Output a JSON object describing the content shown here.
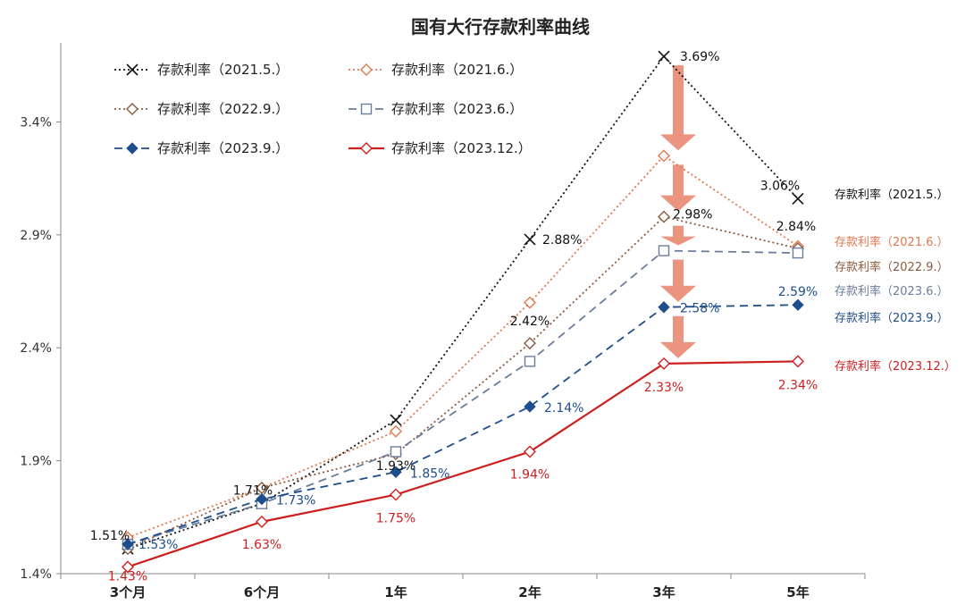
{
  "chart_data": {
    "type": "line",
    "title": "国有大行存款利率曲线",
    "categories": [
      "3个月",
      "6个月",
      "1年",
      "2年",
      "3年",
      "5年"
    ],
    "yticks": [
      "1.4%",
      "1.9%",
      "2.4%",
      "2.9%",
      "3.4%"
    ],
    "ylim": [
      1.4,
      3.75
    ],
    "grid": false,
    "legend_position": "top-left",
    "series": [
      {
        "name": "存款利率（2021.5.）",
        "end_label": "存款利率（2021.5.）",
        "values": [
          1.51,
          1.71,
          2.08,
          2.88,
          3.69,
          3.06
        ],
        "color": "#111111",
        "marker": "x",
        "dash": "2,3"
      },
      {
        "name": "存款利率（2021.6.）",
        "end_label": "存款利率（2021.6.）",
        "values": [
          1.56,
          1.78,
          2.03,
          2.6,
          3.25,
          2.85
        ],
        "color": "#e07850",
        "marker": "diamond-open",
        "dash": "2,3"
      },
      {
        "name": "存款利率（2022.9.）",
        "end_label": "存款利率（2022.9.）",
        "values": [
          1.51,
          1.78,
          1.93,
          2.42,
          2.98,
          2.84
        ],
        "color": "#8b5a3c",
        "marker": "diamond-open",
        "dash": "2,3"
      },
      {
        "name": "存款利率（2023.6.）",
        "end_label": "存款利率（2023.6.）",
        "values": [
          1.53,
          1.71,
          1.94,
          2.34,
          2.83,
          2.82
        ],
        "color": "#6a7d9a",
        "marker": "square-open",
        "dash": "9,6"
      },
      {
        "name": "存款利率（2023.9.）",
        "end_label": "存款利率（2023.9.）",
        "values": [
          1.53,
          1.73,
          1.85,
          2.14,
          2.58,
          2.59
        ],
        "color": "#1f4e8c",
        "marker": "diamond-filled",
        "dash": "9,6"
      },
      {
        "name": "存款利率（2023.12.）",
        "end_label": "存款利率（2023.12.）",
        "values": [
          1.43,
          1.63,
          1.75,
          1.94,
          2.33,
          2.34
        ],
        "color": "#cc1f1f",
        "marker": "diamond-open",
        "dash": ""
      }
    ],
    "data_labels": [
      {
        "series": 0,
        "index": 0,
        "text": "1.51%"
      },
      {
        "series": 0,
        "index": 1,
        "text": "1.71%"
      },
      {
        "series": 0,
        "index": 3,
        "text": "2.88%"
      },
      {
        "series": 0,
        "index": 4,
        "text": "3.69%"
      },
      {
        "series": 0,
        "index": 5,
        "text": "3.06%"
      },
      {
        "series": 2,
        "index": 2,
        "text": "1.93%"
      },
      {
        "series": 2,
        "index": 3,
        "text": "2.42%"
      },
      {
        "series": 2,
        "index": 4,
        "text": "2.98%"
      },
      {
        "series": 2,
        "index": 5,
        "text": "2.84%"
      },
      {
        "series": 4,
        "index": 0,
        "text": "1.53%"
      },
      {
        "series": 4,
        "index": 1,
        "text": "1.73%"
      },
      {
        "series": 4,
        "index": 2,
        "text": "1.85%"
      },
      {
        "series": 4,
        "index": 3,
        "text": "2.14%"
      },
      {
        "series": 4,
        "index": 4,
        "text": "2.58%"
      },
      {
        "series": 4,
        "index": 5,
        "text": "2.59%"
      },
      {
        "series": 5,
        "index": 0,
        "text": "1.43%"
      },
      {
        "series": 5,
        "index": 1,
        "text": "1.63%"
      },
      {
        "series": 5,
        "index": 2,
        "text": "1.75%"
      },
      {
        "series": 5,
        "index": 3,
        "text": "1.94%"
      },
      {
        "series": 5,
        "index": 4,
        "text": "2.33%"
      },
      {
        "series": 5,
        "index": 5,
        "text": "2.34%"
      }
    ],
    "arrow_color": "#e8836b"
  }
}
